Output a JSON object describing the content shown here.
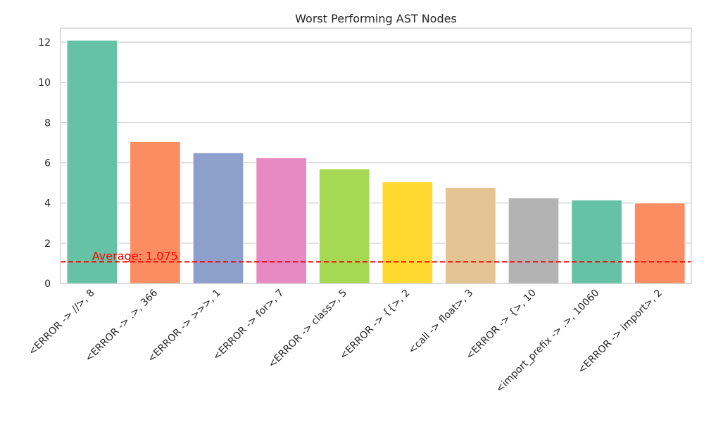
{
  "chart_data": {
    "type": "bar",
    "title": "Worst Performing AST Nodes",
    "xlabel": "",
    "ylabel": "",
    "categories": [
      "<ERROR -> //>, 8",
      "<ERROR -> .>, 366",
      "<ERROR -> >>>, 1",
      "<ERROR -> for>, 7",
      "<ERROR -> class>, 5",
      "<ERROR -> {{>, 2",
      "<call -> float>, 3",
      "<ERROR -> {>, 10",
      "<import_prefix -> .>, 10060",
      "<ERROR -> import>, 2"
    ],
    "values": [
      12.1,
      7.05,
      6.5,
      6.25,
      5.7,
      5.05,
      4.78,
      4.25,
      4.15,
      4.0
    ],
    "colors": [
      "#66c2a5",
      "#fc8d62",
      "#8da0cb",
      "#e78ac3",
      "#a6d854",
      "#ffd92f",
      "#e5c494",
      "#b3b3b3",
      "#66c2a5",
      "#fc8d62"
    ],
    "ylim": [
      0,
      12.7
    ],
    "yticks": [
      0,
      2,
      4,
      6,
      8,
      10,
      12
    ],
    "grid": true,
    "reference_line": {
      "value": 1.075,
      "label": "Average: 1.075",
      "color": "#ff0000",
      "style": "dashed"
    }
  }
}
